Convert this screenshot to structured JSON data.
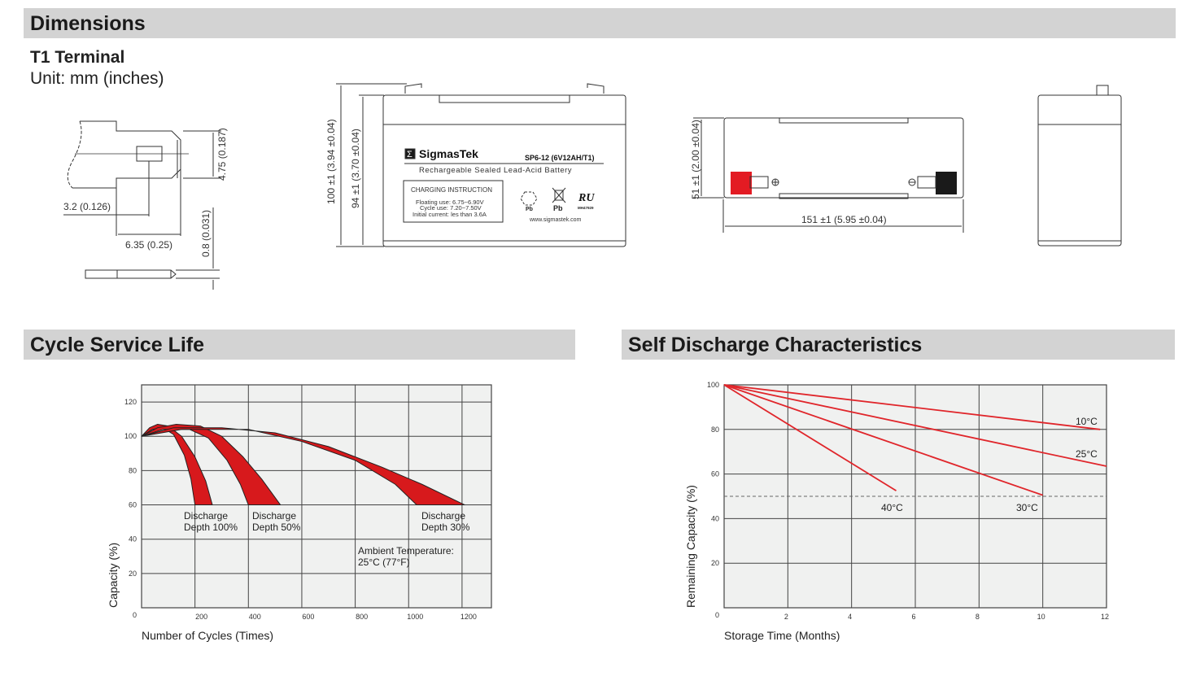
{
  "sections": {
    "dimensions": "Dimensions",
    "cycle_life": "Cycle Service Life",
    "self_discharge": "Self Discharge Characteristics"
  },
  "terminal": {
    "title": "T1 Terminal",
    "unit": "Unit: mm (inches)"
  },
  "dimension_labels": {
    "terminal_height": "4.75 (0.187)",
    "hole_offset": "3.2 (0.126)",
    "terminal_length": "6.35 (0.25)",
    "terminal_thickness": "0.8 (0.031)",
    "total_height": "100 ±1 (3.94 ±0.04)",
    "container_height": "94 ±1 (3.70 ±0.04)",
    "width": "51 ±1 (2.00 ±0.04)",
    "length": "151 ±1 (5.95 ±0.04)"
  },
  "battery_label": {
    "brand": "SigmasTek",
    "brand_symbol": "Σ",
    "model": "SP6-12 (6V12AH/T1)",
    "description": "Rechargeable Sealed Lead-Acid Battery",
    "charging_title": "CHARGING INSTRUCTION",
    "charging_lines": [
      "Floating use: 6.75~6.90V",
      "Cycle use: 7.20~7.50V",
      "Initial current: les than 3.6A"
    ],
    "recycle_text": "Pb",
    "bin_text": "Pb",
    "ul_mark": "RU",
    "ul_number": "MH47929",
    "website": "www.sigmastek.com",
    "positive_color": "#e31b23",
    "negative_color": "#1a1a1a"
  },
  "chart_data": [
    {
      "type": "area",
      "title": "Cycle Service Life",
      "xlabel": "Number of Cycles (Times)",
      "ylabel": "Capacity (%)",
      "xlim": [
        0,
        1310
      ],
      "ylim": [
        0,
        130
      ],
      "xticks": [
        200,
        400,
        600,
        800,
        1000,
        1200
      ],
      "yticks": [
        0,
        20,
        40,
        60,
        80,
        100,
        120
      ],
      "grid": true,
      "color": "#d7191c",
      "series": [
        {
          "name": "Discharge Depth 100%",
          "line1": "Discharge",
          "line2": "Depth 100%",
          "upper": [
            [
              0,
              100
            ],
            [
              30,
              105
            ],
            [
              60,
              107
            ],
            [
              100,
              106
            ],
            [
              150,
              100
            ],
            [
              200,
              88
            ],
            [
              240,
              74
            ],
            [
              265,
              60
            ]
          ],
          "lower": [
            [
              0,
              100
            ],
            [
              40,
              104
            ],
            [
              80,
              105
            ],
            [
              120,
              101
            ],
            [
              160,
              89
            ],
            [
              185,
              75
            ],
            [
              200,
              60
            ]
          ]
        },
        {
          "name": "Discharge Depth 50%",
          "line1": "Discharge",
          "line2": "Depth 50%",
          "upper": [
            [
              0,
              100
            ],
            [
              60,
              105
            ],
            [
              130,
              107
            ],
            [
              220,
              106
            ],
            [
              300,
              100
            ],
            [
              380,
              88
            ],
            [
              450,
              75
            ],
            [
              520,
              60
            ]
          ],
          "lower": [
            [
              0,
              100
            ],
            [
              80,
              104
            ],
            [
              180,
              104
            ],
            [
              250,
              99
            ],
            [
              320,
              86
            ],
            [
              370,
              72
            ],
            [
              400,
              60
            ]
          ]
        },
        {
          "name": "Discharge Depth 30%",
          "line1": "Discharge",
          "line2": "Depth 30%",
          "upper": [
            [
              0,
              100
            ],
            [
              120,
              105
            ],
            [
              300,
              105
            ],
            [
              500,
              102
            ],
            [
              700,
              94
            ],
            [
              900,
              82
            ],
            [
              1050,
              72
            ],
            [
              1210,
              60
            ]
          ],
          "lower": [
            [
              0,
              100
            ],
            [
              150,
              104
            ],
            [
              400,
              104
            ],
            [
              600,
              97
            ],
            [
              800,
              86
            ],
            [
              950,
              72
            ],
            [
              1030,
              60
            ]
          ]
        }
      ],
      "annotation": [
        "Ambient Temperature:",
        "25°C (77°F)"
      ]
    },
    {
      "type": "line",
      "title": "Self Discharge Characteristics",
      "xlabel": "Storage Time (Months)",
      "ylabel": "Remaining Capacity (%)",
      "xlim": [
        0,
        12
      ],
      "ylim": [
        0,
        100
      ],
      "xticks": [
        2,
        4,
        6,
        8,
        10,
        12
      ],
      "yticks": [
        0,
        20,
        40,
        60,
        80,
        100
      ],
      "grid": true,
      "reference_line": 50,
      "color": "#e0262b",
      "series": [
        {
          "name": "10°C",
          "points": [
            [
              0,
              100
            ],
            [
              11.8,
              80
            ]
          ]
        },
        {
          "name": "25°C",
          "points": [
            [
              0,
              100
            ],
            [
              12,
              63.5
            ]
          ]
        },
        {
          "name": "30°C",
          "points": [
            [
              0,
              100
            ],
            [
              10,
              50.5
            ]
          ]
        },
        {
          "name": "40°C",
          "points": [
            [
              0,
              100
            ],
            [
              5.4,
              52.5
            ]
          ]
        }
      ]
    }
  ]
}
